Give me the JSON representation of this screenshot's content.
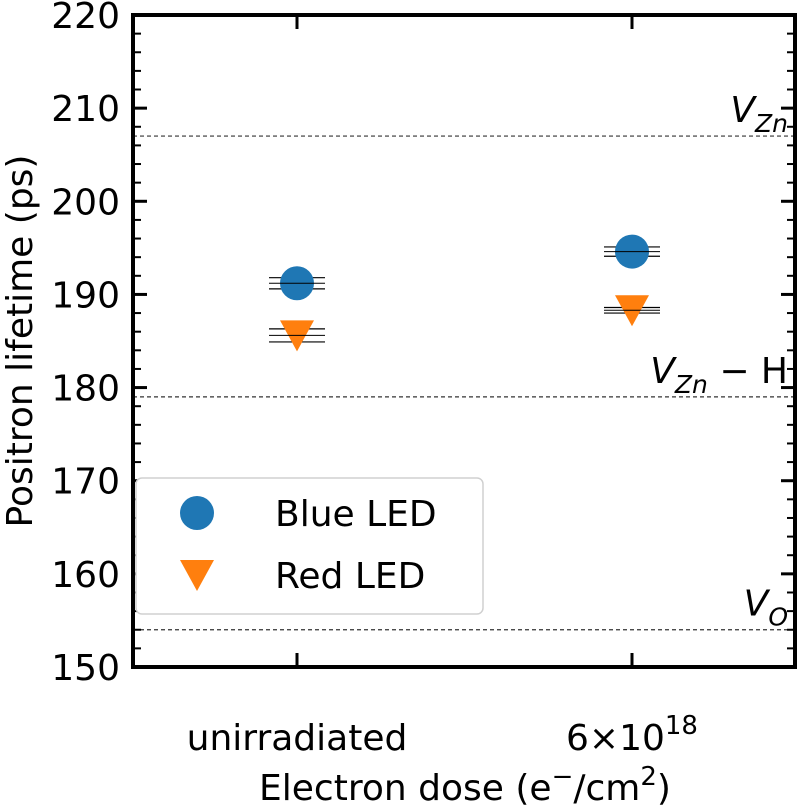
{
  "chart_data": {
    "type": "scatter",
    "title": "",
    "xlabel_main": "Electron dose (e",
    "xlabel_sup1": "−",
    "xlabel_mid": "/cm",
    "xlabel_sup2": "2",
    "xlabel_end": ")",
    "ylabel": "Positron lifetime (ps)",
    "ylim": [
      150,
      220
    ],
    "yticks": [
      150,
      160,
      170,
      180,
      190,
      200,
      210,
      220
    ],
    "categories": [
      {
        "label": "unirradiated",
        "sup": ""
      },
      {
        "label": "6×10",
        "sup": "18"
      }
    ],
    "series": [
      {
        "name": "Blue LED",
        "marker": "circle",
        "color": "#1f77b4",
        "values": [
          191.2,
          194.6
        ],
        "err": [
          0.6,
          0.5
        ]
      },
      {
        "name": "Red LED",
        "marker": "triangle-down",
        "color": "#ff7f0e",
        "values": [
          185.6,
          188.3
        ],
        "err": [
          0.7,
          0.3
        ]
      }
    ],
    "reference_lines": [
      {
        "value": 207,
        "label_main": "V",
        "label_sub": "Zn",
        "label_tail": ""
      },
      {
        "value": 179,
        "label_main": "V",
        "label_sub": "Zn",
        "label_tail": " − H"
      },
      {
        "value": 154,
        "label_main": "V",
        "label_sub": "O",
        "label_tail": ""
      }
    ],
    "legend": {
      "position": "lower-left"
    }
  }
}
